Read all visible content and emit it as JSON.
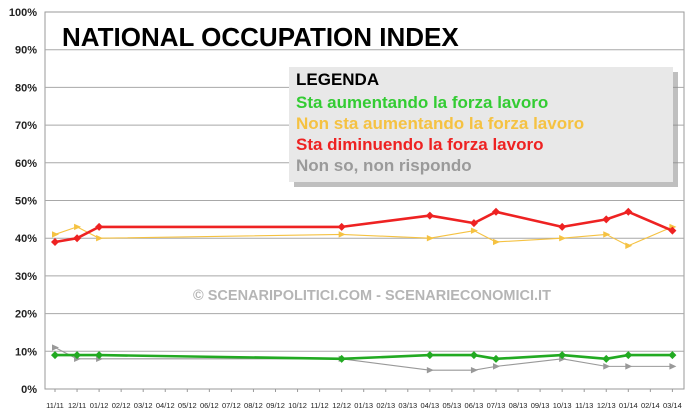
{
  "chart_data": {
    "type": "line",
    "title": "NATIONAL OCCUPATION INDEX",
    "watermark": "© SCENARIPOLITICI.COM - SCENARIECONOMICI.IT",
    "legend": {
      "title": "LEGENDA",
      "placement": "top-right"
    },
    "ylim": [
      0,
      100
    ],
    "y_ticks": [
      "0%",
      "10%",
      "20%",
      "30%",
      "40%",
      "50%",
      "60%",
      "70%",
      "80%",
      "90%",
      "100%"
    ],
    "x_ticks": [
      "11/11",
      "12/11",
      "01/12",
      "02/12",
      "03/12",
      "04/12",
      "05/12",
      "06/12",
      "07/12",
      "08/12",
      "09/12",
      "10/12",
      "11/12",
      "12/12",
      "01/13",
      "02/13",
      "03/13",
      "04/13",
      "05/13",
      "06/13",
      "07/13",
      "08/13",
      "09/13",
      "10/13",
      "11/13",
      "12/13",
      "01/14",
      "02/14",
      "03/14"
    ],
    "grid": true,
    "series": [
      {
        "name": "Sta aumentando la forza lavoro",
        "color": "#22aa22",
        "label_color": "#33cc33",
        "marker": "diamond",
        "points": [
          [
            "11/11",
            9
          ],
          [
            "12/11",
            9
          ],
          [
            "01/12",
            9
          ],
          [
            "12/12",
            8
          ],
          [
            "04/13",
            9
          ],
          [
            "06/13",
            9
          ],
          [
            "07/13",
            8
          ],
          [
            "10/13",
            9
          ],
          [
            "12/13",
            8
          ],
          [
            "01/14",
            9
          ],
          [
            "03/14",
            9
          ]
        ]
      },
      {
        "name": "Non sta aumentando la forza lavoro",
        "color": "#f5c242",
        "label_color": "#f5c242",
        "marker": "triangle",
        "points": [
          [
            "11/11",
            41
          ],
          [
            "12/11",
            43
          ],
          [
            "01/12",
            40
          ],
          [
            "12/12",
            41
          ],
          [
            "04/13",
            40
          ],
          [
            "06/13",
            42
          ],
          [
            "07/13",
            39
          ],
          [
            "10/13",
            40
          ],
          [
            "12/13",
            41
          ],
          [
            "01/14",
            38
          ],
          [
            "03/14",
            43
          ]
        ]
      },
      {
        "name": "Sta diminuendo la forza lavoro",
        "color": "#ee2222",
        "label_color": "#ee2222",
        "marker": "diamond",
        "points": [
          [
            "11/11",
            39
          ],
          [
            "12/11",
            40
          ],
          [
            "01/12",
            43
          ],
          [
            "12/12",
            43
          ],
          [
            "04/13",
            46
          ],
          [
            "06/13",
            44
          ],
          [
            "07/13",
            47
          ],
          [
            "10/13",
            43
          ],
          [
            "12/13",
            45
          ],
          [
            "01/14",
            47
          ],
          [
            "03/14",
            42
          ]
        ]
      },
      {
        "name": "Non so, non rispondo",
        "color": "#999999",
        "label_color": "#9a9a9a",
        "marker": "triangle",
        "points": [
          [
            "11/11",
            11
          ],
          [
            "12/11",
            8
          ],
          [
            "01/12",
            8
          ],
          [
            "12/12",
            8
          ],
          [
            "04/13",
            5
          ],
          [
            "06/13",
            5
          ],
          [
            "07/13",
            6
          ],
          [
            "10/13",
            8
          ],
          [
            "12/13",
            6
          ],
          [
            "01/14",
            6
          ],
          [
            "03/14",
            6
          ]
        ]
      }
    ]
  }
}
